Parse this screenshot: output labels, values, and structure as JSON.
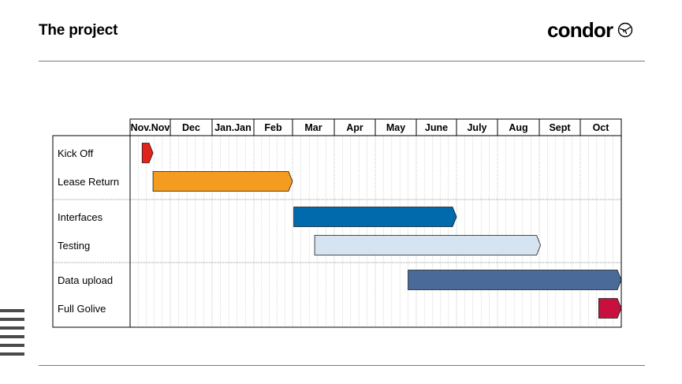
{
  "header": {
    "title": "The project",
    "logo_text": "condor",
    "logo_mark": "condor-bird-icon"
  },
  "chart_data": {
    "type": "gantt",
    "title": "The project",
    "months": [
      "Nov.Nov",
      "Dec",
      "Jan.Jan",
      "Feb",
      "Mar",
      "Apr",
      "May",
      "June",
      "July",
      "Aug",
      "Sept",
      "Oct"
    ],
    "groups": [
      {
        "tasks": [
          "Kick Off",
          "Lease Return"
        ]
      },
      {
        "tasks": [
          "Interfaces",
          "Testing"
        ]
      },
      {
        "tasks": [
          "Data upload",
          "Full Golive"
        ]
      }
    ],
    "tasks": [
      {
        "name": "Kick Off",
        "start": 0.3,
        "end": 0.57,
        "color": "#e2231a"
      },
      {
        "name": "Lease Return",
        "start": 0.57,
        "end": 4.0,
        "color": "#f39c1f"
      },
      {
        "name": "Interfaces",
        "start": 4.03,
        "end": 8.0,
        "color": "#006aad"
      },
      {
        "name": "Testing",
        "start": 4.53,
        "end": 10.03,
        "color": "#d6e3f0"
      },
      {
        "name": "Data upload",
        "start": 6.8,
        "end": 12.0,
        "color": "#4a6a9a"
      },
      {
        "name": "Full Golive",
        "start": 11.45,
        "end": 12.0,
        "color": "#c8103e"
      }
    ],
    "x_range": [
      0,
      12
    ],
    "grid": true
  }
}
